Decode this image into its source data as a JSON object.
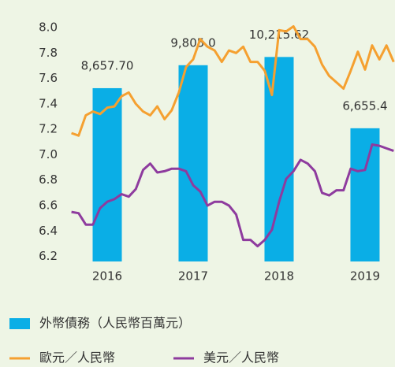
{
  "chart_data": {
    "type": "bar-line",
    "xlim": [
      2014.752,
      2019.349
    ],
    "xticks": [
      2016,
      2017,
      2018,
      2019
    ],
    "ylim": [
      6.16,
      8.05
    ],
    "yticks": [
      6.2,
      6.4,
      6.6,
      6.8,
      {
        "value": 7,
        "label": "7.0"
      },
      7.2,
      7.4,
      7.6,
      7.8,
      {
        "value": 8,
        "label": "8.0"
      }
    ],
    "y2lim": [
      0,
      12000
    ],
    "bars": {
      "name": "外幣債務（人民幣百萬元）",
      "color": "#0aaee6",
      "axis": "y2",
      "x": [
        2016,
        2017,
        2018,
        2019
      ],
      "values": [
        8657.7,
        9805.0,
        10215.62,
        6655.4
      ],
      "value_labels": [
        "8,657.70",
        "9,805.0",
        "10,215.62",
        "6,655.4"
      ]
    },
    "x": [
      2015.583,
      2015.667,
      2015.75,
      2015.833,
      2015.917,
      2016,
      2016.083,
      2016.167,
      2016.25,
      2016.333,
      2016.417,
      2016.5,
      2016.583,
      2016.667,
      2016.75,
      2016.833,
      2016.917,
      2017,
      2017.083,
      2017.167,
      2017.25,
      2017.333,
      2017.417,
      2017.5,
      2017.583,
      2017.667,
      2017.75,
      2017.833,
      2017.917,
      2018,
      2018.083,
      2018.167,
      2018.25,
      2018.333,
      2018.417,
      2018.5,
      2018.583,
      2018.667,
      2018.75,
      2018.833,
      2018.917,
      2019,
      2019.083,
      2019.167,
      2019.25,
      2019.333
    ],
    "series": [
      {
        "name": "歐元／人民幣",
        "color": "#f5a030",
        "values": [
          7.17,
          7.15,
          7.31,
          7.34,
          7.32,
          7.37,
          7.38,
          7.46,
          7.49,
          7.4,
          7.34,
          7.31,
          7.38,
          7.28,
          7.35,
          7.49,
          7.69,
          7.75,
          7.91,
          7.85,
          7.82,
          7.73,
          7.82,
          7.8,
          7.85,
          7.73,
          7.73,
          7.66,
          7.47,
          7.98,
          7.97,
          8.01,
          7.91,
          7.91,
          7.85,
          7.71,
          7.62,
          7.57,
          7.52,
          7.66,
          7.81,
          7.67,
          7.86,
          7.75,
          7.86,
          7.73
        ]
      },
      {
        "name": "美元／人民幣",
        "color": "#8e3b9e",
        "values": [
          6.55,
          6.54,
          6.45,
          6.45,
          6.58,
          6.63,
          6.65,
          6.69,
          6.67,
          6.73,
          6.88,
          6.93,
          6.86,
          6.87,
          6.89,
          6.89,
          6.87,
          6.76,
          6.71,
          6.6,
          6.63,
          6.63,
          6.6,
          6.53,
          6.33,
          6.33,
          6.28,
          6.33,
          6.41,
          6.63,
          6.81,
          6.87,
          6.96,
          6.93,
          6.87,
          6.7,
          6.68,
          6.72,
          6.72,
          6.89,
          6.87,
          6.88,
          7.08,
          7.07,
          7.05,
          7.03
        ]
      }
    ]
  }
}
